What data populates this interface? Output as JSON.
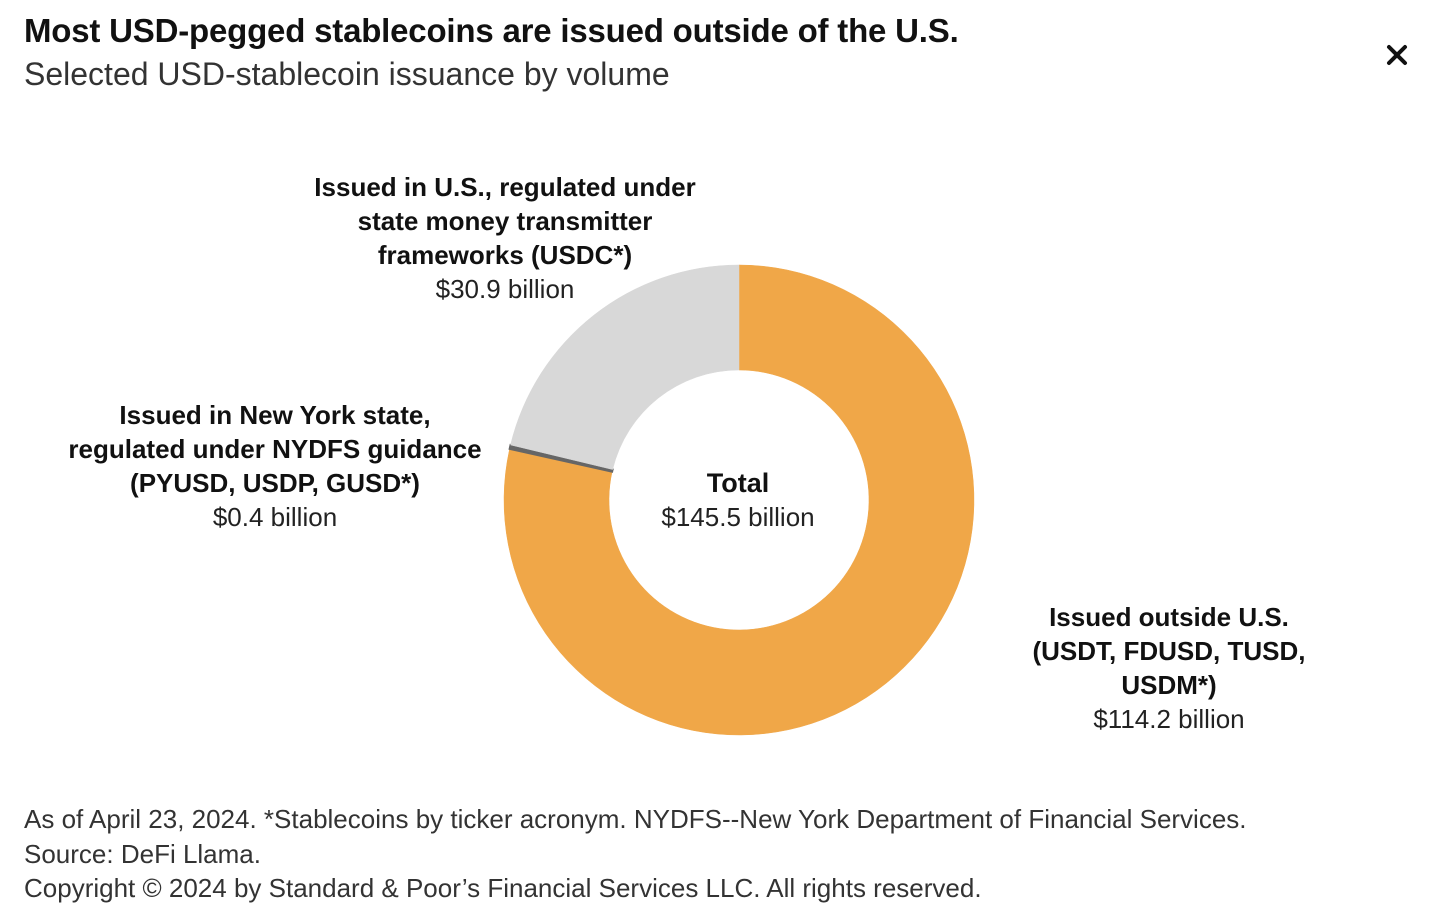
{
  "header": {
    "title": "Most USD-pegged stablecoins are issued outside of the U.S.",
    "subtitle": "Selected USD-stablecoin issuance by volume"
  },
  "controls": {
    "close_icon": "close-icon"
  },
  "chart_data": {
    "type": "pie",
    "variant": "donut",
    "title": "Most USD-pegged stablecoins are issued outside of the U.S.",
    "subtitle": "Selected USD-stablecoin issuance by volume",
    "unit": "billion USD",
    "slices": [
      {
        "label": "Issued outside U.S.\n(USDT, FDUSD, TUSD, USDM*)",
        "value": 114.2,
        "value_label": "$114.2 billion",
        "color": "#F0A748"
      },
      {
        "label": "Issued in New York state,\nregulated under NYDFS guidance\n(PYUSD, USDP, GUSD*)",
        "value": 0.4,
        "value_label": "$0.4 billion",
        "color": "#666666"
      },
      {
        "label": "Issued in U.S., regulated under\nstate money transmitter\nframeworks (USDC*)",
        "value": 30.9,
        "value_label": "$30.9 billion",
        "color": "#D8D8D8"
      }
    ],
    "center": {
      "label": "Total",
      "value": 145.5,
      "value_label": "$145.5 billion"
    },
    "legend": "none (direct labels)"
  },
  "footnotes": [
    "As of April 23, 2024. *Stablecoins by ticker acronym. NYDFS--New York Department of Financial Services.",
    "Source: DeFi Llama.",
    "Copyright © 2024 by Standard & Poor’s Financial Services LLC. All rights reserved."
  ]
}
